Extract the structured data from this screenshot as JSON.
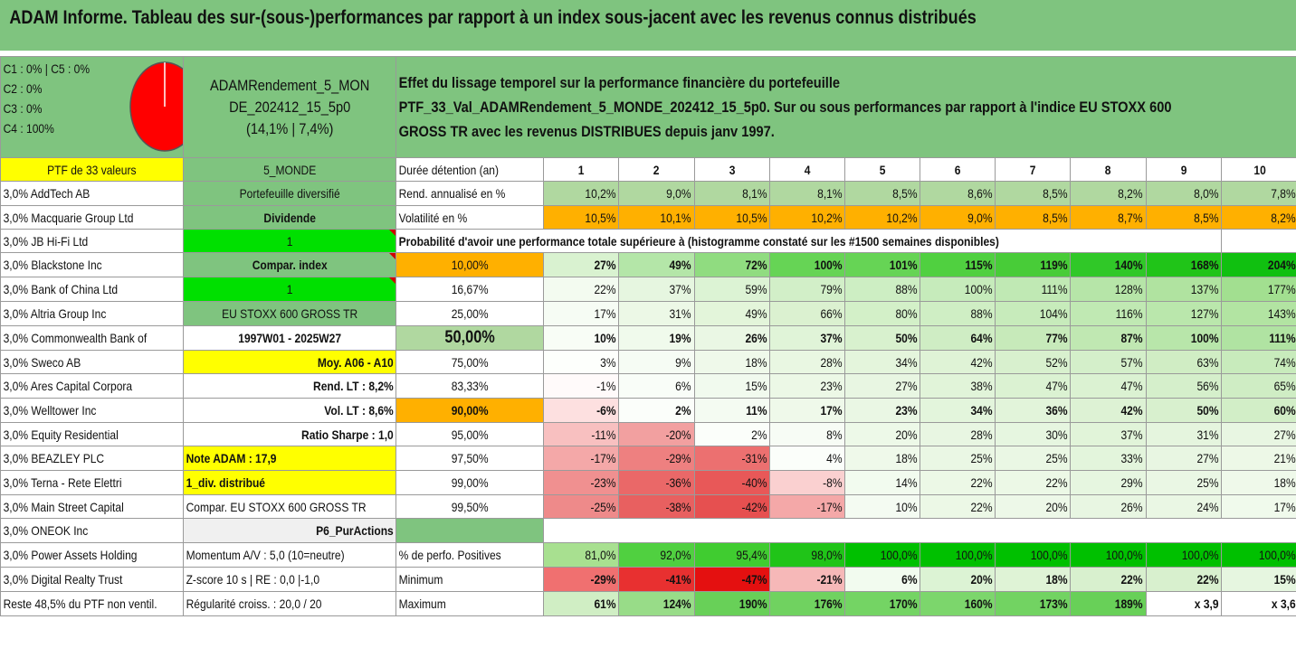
{
  "title": "ADAM Informe. Tableau des sur-(sous-)performances par rapport à un index sous-jacent avec les revenus connus distribués",
  "info": {
    "c1c5": "C1 : 0% | C5 : 0%",
    "c2": "C2 : 0%",
    "c3": "C3 : 0%",
    "c4": "C4 : 100%"
  },
  "fund": {
    "line1": "ADAMRendement_5_MON",
    "line2": "DE_202412_15_5p0",
    "line3": "(14,1% | 7,4%)"
  },
  "description": {
    "line1": "Effet du lissage temporel sur la performance financière du portefeuille",
    "line2": "PTF_33_Val_ADAMRendement_5_MONDE_202412_15_5p0. Sur ou sous performances par rapport à l'indice EU STOXX 600",
    "line3": "GROSS TR avec les revenus DISTRIBUES depuis janv 1997."
  },
  "header_row": {
    "ptf": "PTF de 33 valeurs",
    "zone": "5_MONDE",
    "label": "Durée détention (an)",
    "years": [
      "1",
      "2",
      "3",
      "4",
      "5",
      "6",
      "7",
      "8",
      "9",
      "10"
    ]
  },
  "holdings": [
    "3,0% AddTech AB",
    "3,0% Macquarie Group Ltd",
    "3,0% JB Hi-Fi Ltd",
    "3,0% Blackstone Inc",
    "3,0% Bank of China Ltd",
    "3,0% Altria Group Inc",
    "3,0% Commonwealth Bank of",
    "3,0% Sweco AB",
    "3,0% Ares Capital Corpora",
    "3,0% Welltower Inc",
    "3,0% Equity Residential",
    "3,0% BEAZLEY PLC",
    "3,0% Terna - Rete Elettri",
    "3,0% Main Street Capital",
    "3,0% ONEOK Inc",
    "3,0% Power Assets Holding",
    "3,0% Digital Realty Trust",
    "Reste 48,5% du PTF non ventil."
  ],
  "side": {
    "diversifie": "Portefeuille diversifié",
    "dividende": "Dividende",
    "one_a": "1",
    "compar_index": "Compar. index",
    "one_b": "1",
    "index_name": "EU STOXX 600 GROSS TR",
    "period": "1997W01 - 2025W27",
    "moy": "Moy. A06 - A10",
    "rend_lt": "Rend. LT : 8,2%",
    "vol_lt": "Vol. LT : 8,6%",
    "sharpe": "Ratio Sharpe : 1,0",
    "note": "Note ADAM : 17,9",
    "div": "1_div. distribué",
    "compar_full": "Compar. EU STOXX 600 GROSS TR",
    "p6": "P6_PurActions",
    "momentum": "Momentum A/V : 5,0 (10=neutre)",
    "zscore": "Z-score 10 s | RE : 0,0 |-1,0",
    "regularite": "Régularité croiss. : 20,0 / 20"
  },
  "rend": {
    "label": "Rend. annualisé en %",
    "values": [
      "10,2%",
      "9,0%",
      "8,1%",
      "8,1%",
      "8,5%",
      "8,6%",
      "8,5%",
      "8,2%",
      "8,0%",
      "7,8%"
    ]
  },
  "vol": {
    "label": "Volatilité en %",
    "values": [
      "10,5%",
      "10,1%",
      "10,5%",
      "10,2%",
      "10,2%",
      "9,0%",
      "8,5%",
      "8,7%",
      "8,5%",
      "8,2%"
    ]
  },
  "prob_title": "Probabilité d'avoir une performance totale supérieure à (histogramme constaté sur les #1500 semaines disponibles)",
  "prob_rows": [
    {
      "p": "10,00%",
      "v": [
        "27%",
        "49%",
        "72%",
        "100%",
        "101%",
        "115%",
        "119%",
        "140%",
        "168%",
        "204%"
      ],
      "bg": [
        "#d9f2d0",
        "#b4e6a8",
        "#90dc80",
        "#66d455",
        "#66d455",
        "#50d040",
        "#48cc38",
        "#30c828",
        "#20c418",
        "#10c010"
      ]
    },
    {
      "p": "16,67%",
      "v": [
        "22%",
        "37%",
        "59%",
        "79%",
        "88%",
        "100%",
        "111%",
        "128%",
        "137%",
        "177%"
      ],
      "bg": [
        "#f3fbf0",
        "#e6f6e0",
        "#dcf3d4",
        "#d2efc8",
        "#cdeec3",
        "#c6ebbb",
        "#c0e9b4",
        "#b6e5a8",
        "#b0e3a0",
        "#a2df90"
      ]
    },
    {
      "p": "25,00%",
      "v": [
        "17%",
        "31%",
        "49%",
        "66%",
        "80%",
        "88%",
        "104%",
        "116%",
        "127%",
        "143%"
      ],
      "bg": [
        "#f6fcf4",
        "#ecf8e6",
        "#e3f5da",
        "#dbf1d0",
        "#d3f0c8",
        "#cfeec4",
        "#c7ebbb",
        "#c0e9b3",
        "#bae7ac",
        "#b2e4a2"
      ]
    },
    {
      "p": "50,00%",
      "v": [
        "10%",
        "19%",
        "26%",
        "37%",
        "50%",
        "64%",
        "77%",
        "87%",
        "100%",
        "111%"
      ],
      "bg": [
        "#f8fdf6",
        "#f0faec",
        "#eaf7e4",
        "#e0f4d8",
        "#d8f1ce",
        "#cfedc4",
        "#c7eaba",
        "#c0e8b2",
        "#b8e6aa",
        "#b0e3a2"
      ]
    },
    {
      "p": "75,00%",
      "v": [
        "3%",
        "9%",
        "18%",
        "28%",
        "34%",
        "42%",
        "52%",
        "57%",
        "63%",
        "74%"
      ],
      "bg": [
        "#fdfffc",
        "#f6fcf4",
        "#eff9ea",
        "#e9f7e2",
        "#e4f5dc",
        "#dff3d6",
        "#d8f0ce",
        "#d4efca",
        "#d0edc4",
        "#c8ebbc"
      ]
    },
    {
      "p": "83,33%",
      "v": [
        "-1%",
        "6%",
        "15%",
        "23%",
        "27%",
        "38%",
        "47%",
        "47%",
        "56%",
        "65%"
      ],
      "bg": [
        "#fffafa",
        "#f9fdf8",
        "#f1faee",
        "#ecf8e6",
        "#e8f6e2",
        "#e1f4d9",
        "#dbf2d2",
        "#dbf2d2",
        "#d5efcb",
        "#cfedc4"
      ]
    },
    {
      "p": "90,00%",
      "v": [
        "-6%",
        "2%",
        "11%",
        "17%",
        "23%",
        "34%",
        "36%",
        "42%",
        "50%",
        "60%"
      ],
      "bg": [
        "#fde0e0",
        "#fbfefa",
        "#f4fbf2",
        "#eff9ea",
        "#eaf7e4",
        "#e3f5dc",
        "#e2f4da",
        "#ddf2d4",
        "#d8f0ce",
        "#d2eec7"
      ]
    },
    {
      "p": "95,00%",
      "v": [
        "-11%",
        "-20%",
        "2%",
        "8%",
        "20%",
        "28%",
        "30%",
        "37%",
        "31%",
        "27%"
      ],
      "bg": [
        "#f8c0c0",
        "#f2a0a0",
        "#fbfefa",
        "#f7fcf5",
        "#edf9e8",
        "#e8f6e2",
        "#e6f6e0",
        "#e1f4d9",
        "#e5f5de",
        "#e8f6e2"
      ]
    },
    {
      "p": "97,50%",
      "v": [
        "-17%",
        "-29%",
        "-31%",
        "4%",
        "18%",
        "25%",
        "25%",
        "33%",
        "27%",
        "21%"
      ],
      "bg": [
        "#f4a8a8",
        "#ee8080",
        "#ec7070",
        "#fbfefa",
        "#eff9ea",
        "#eaf7e4",
        "#eaf7e4",
        "#e3f5dc",
        "#e8f6e2",
        "#edf8e7"
      ]
    },
    {
      "p": "99,00%",
      "v": [
        "-23%",
        "-36%",
        "-40%",
        "-8%",
        "14%",
        "22%",
        "22%",
        "29%",
        "25%",
        "18%"
      ],
      "bg": [
        "#f09090",
        "#ea6868",
        "#e85858",
        "#fad0d0",
        "#f2fbef",
        "#ecf8e6",
        "#ecf8e6",
        "#e6f6e0",
        "#eaf7e4",
        "#eff9ea"
      ]
    },
    {
      "p": "99,50%",
      "v": [
        "-25%",
        "-38%",
        "-42%",
        "-17%",
        "10%",
        "22%",
        "20%",
        "26%",
        "24%",
        "17%"
      ],
      "bg": [
        "#ee8a8a",
        "#e86060",
        "#e65050",
        "#f4a8a8",
        "#f4fbf2",
        "#ecf8e6",
        "#edf8e8",
        "#e8f6e2",
        "#eaf7e4",
        "#f0faec"
      ]
    }
  ],
  "pos": {
    "label": "% de perfo. Positives",
    "values": [
      "81,0%",
      "92,0%",
      "95,4%",
      "98,0%",
      "100,0%",
      "100,0%",
      "100,0%",
      "100,0%",
      "100,0%",
      "100,0%"
    ],
    "bg": [
      "#a8e090",
      "#50d040",
      "#40cc30",
      "#20c418",
      "#00c000",
      "#00c000",
      "#00c000",
      "#00c000",
      "#00c000",
      "#00c000"
    ]
  },
  "min": {
    "label": "Minimum",
    "values": [
      "-29%",
      "-41%",
      "-47%",
      "-21%",
      "6%",
      "20%",
      "18%",
      "22%",
      "22%",
      "15%"
    ],
    "bg": [
      "#f07070",
      "#e83030",
      "#e41010",
      "#f6b8b8",
      "#f2fbef",
      "#dcf3d4",
      "#dff3d6",
      "#d8f0ce",
      "#d8f0ce",
      "#e6f6e0"
    ]
  },
  "max": {
    "label": "Maximum",
    "values": [
      "61%",
      "124%",
      "190%",
      "176%",
      "170%",
      "160%",
      "173%",
      "189%",
      "x 3,9",
      "x 3,6"
    ],
    "bg": [
      "#d0eec4",
      "#98dc88",
      "#68d058",
      "#70d260",
      "#74d464",
      "#7cd66c",
      "#72d362",
      "#68d058",
      "#ffffff",
      "#ffffff"
    ]
  },
  "colors": {
    "header_green": "#7fc47f",
    "yellow": "#ffff00",
    "lime": "#00e000",
    "orange": "#ffb000",
    "red_text": "#e00000",
    "pie_red": "#ff0000"
  }
}
